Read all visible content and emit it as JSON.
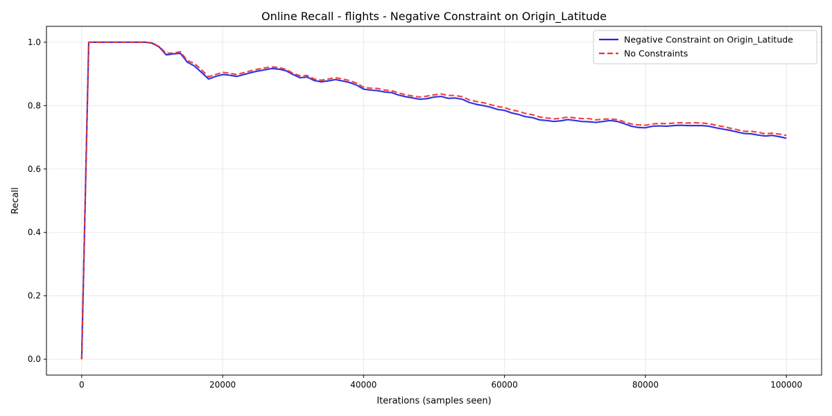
{
  "chart_data": {
    "type": "line",
    "title": "Online Recall - flights - Negative Constraint on Origin_Latitude",
    "xlabel": "Iterations (samples seen)",
    "ylabel": "Recall",
    "xlim": [
      -5000,
      105000
    ],
    "ylim": [
      -0.05,
      1.05
    ],
    "xticks": [
      0,
      20000,
      40000,
      60000,
      80000,
      100000
    ],
    "yticks": [
      0.0,
      0.2,
      0.4,
      0.6,
      0.8,
      1.0
    ],
    "xtick_labels": [
      "0",
      "20000",
      "40000",
      "60000",
      "80000",
      "100000"
    ],
    "ytick_labels": [
      "0.0",
      "0.2",
      "0.4",
      "0.6",
      "0.8",
      "1.0"
    ],
    "grid": true,
    "legend": "top-right",
    "x": [
      0,
      1000,
      2000,
      3000,
      4000,
      5000,
      6000,
      7000,
      8000,
      9000,
      10000,
      11000,
      12000,
      13000,
      14000,
      15000,
      16000,
      17000,
      18000,
      19000,
      20000,
      21000,
      22000,
      23000,
      24000,
      25000,
      26000,
      27000,
      28000,
      29000,
      30000,
      31000,
      32000,
      33000,
      34000,
      35000,
      36000,
      37000,
      38000,
      39000,
      40000,
      41000,
      42000,
      43000,
      44000,
      45000,
      46000,
      47000,
      48000,
      49000,
      50000,
      51000,
      52000,
      53000,
      54000,
      55000,
      56000,
      57000,
      58000,
      59000,
      60000,
      61000,
      62000,
      63000,
      64000,
      65000,
      66000,
      67000,
      68000,
      69000,
      70000,
      71000,
      72000,
      73000,
      74000,
      75000,
      76000,
      77000,
      78000,
      79000,
      80000,
      81000,
      82000,
      83000,
      84000,
      85000,
      86000,
      87000,
      88000,
      89000,
      90000,
      91000,
      92000,
      93000,
      94000,
      95000,
      96000,
      97000,
      98000,
      99000,
      100000
    ],
    "series": [
      {
        "name": "Negative Constraint on Origin_Latitude",
        "color": "#2222dd",
        "style": "solid",
        "values": [
          0.0,
          1.0,
          1.0,
          1.0,
          1.0,
          1.0,
          1.0,
          1.0,
          1.0,
          1.0,
          0.997,
          0.985,
          0.96,
          0.963,
          0.965,
          0.937,
          0.925,
          0.905,
          0.884,
          0.892,
          0.898,
          0.896,
          0.892,
          0.898,
          0.904,
          0.909,
          0.913,
          0.917,
          0.915,
          0.91,
          0.898,
          0.888,
          0.89,
          0.879,
          0.875,
          0.878,
          0.882,
          0.878,
          0.873,
          0.865,
          0.852,
          0.849,
          0.847,
          0.843,
          0.841,
          0.833,
          0.828,
          0.824,
          0.82,
          0.822,
          0.827,
          0.829,
          0.823,
          0.824,
          0.82,
          0.81,
          0.804,
          0.8,
          0.795,
          0.788,
          0.785,
          0.777,
          0.772,
          0.765,
          0.762,
          0.755,
          0.753,
          0.75,
          0.752,
          0.756,
          0.753,
          0.75,
          0.749,
          0.747,
          0.75,
          0.753,
          0.75,
          0.743,
          0.735,
          0.731,
          0.73,
          0.735,
          0.736,
          0.735,
          0.737,
          0.738,
          0.737,
          0.737,
          0.737,
          0.735,
          0.73,
          0.726,
          0.722,
          0.717,
          0.712,
          0.711,
          0.707,
          0.704,
          0.706,
          0.702,
          0.697
        ]
      },
      {
        "name": "No Constraints",
        "color": "#ee3333",
        "style": "dashed",
        "values": [
          0.0,
          1.0,
          1.0,
          1.0,
          1.0,
          1.0,
          1.0,
          1.0,
          1.0,
          1.0,
          0.998,
          0.986,
          0.965,
          0.966,
          0.97,
          0.942,
          0.933,
          0.913,
          0.891,
          0.898,
          0.905,
          0.902,
          0.898,
          0.904,
          0.91,
          0.915,
          0.919,
          0.922,
          0.92,
          0.914,
          0.902,
          0.894,
          0.895,
          0.884,
          0.88,
          0.884,
          0.888,
          0.884,
          0.879,
          0.871,
          0.858,
          0.855,
          0.854,
          0.849,
          0.847,
          0.84,
          0.834,
          0.83,
          0.827,
          0.83,
          0.834,
          0.837,
          0.832,
          0.832,
          0.828,
          0.818,
          0.813,
          0.809,
          0.803,
          0.797,
          0.794,
          0.786,
          0.782,
          0.775,
          0.771,
          0.764,
          0.761,
          0.758,
          0.76,
          0.764,
          0.761,
          0.759,
          0.759,
          0.755,
          0.757,
          0.758,
          0.756,
          0.749,
          0.742,
          0.739,
          0.738,
          0.742,
          0.744,
          0.743,
          0.745,
          0.746,
          0.745,
          0.746,
          0.745,
          0.743,
          0.738,
          0.734,
          0.729,
          0.724,
          0.719,
          0.719,
          0.716,
          0.711,
          0.713,
          0.71,
          0.706
        ]
      }
    ]
  }
}
